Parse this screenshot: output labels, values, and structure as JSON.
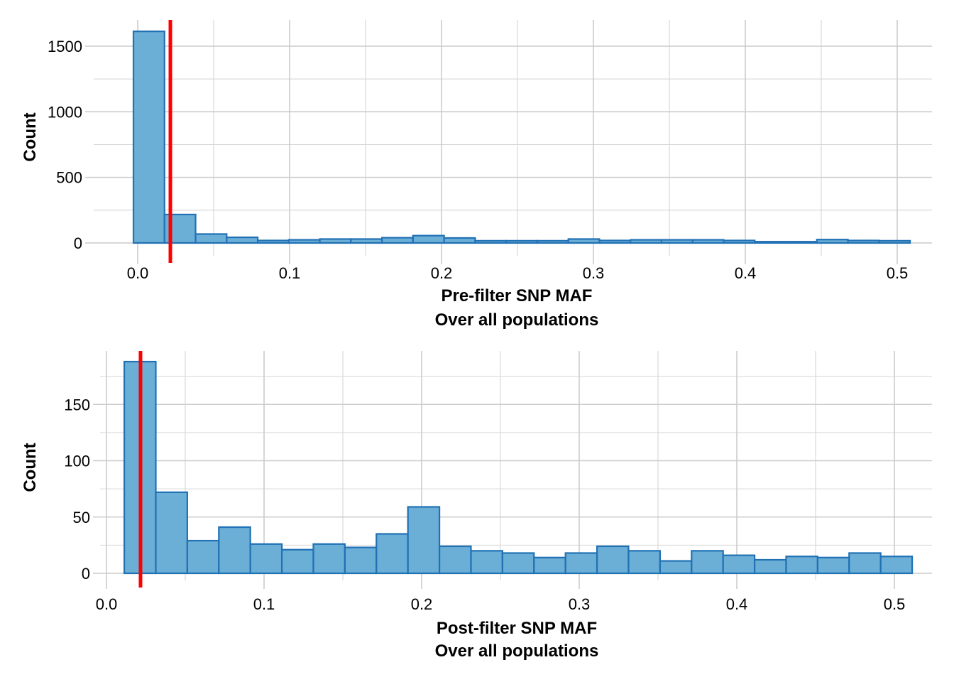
{
  "chart_data": [
    {
      "type": "bar",
      "subtype": "histogram",
      "title": "",
      "xlabel": "Pre-filter SNP MAF\nOver all populations",
      "xlabel_lines": [
        "Pre-filter SNP MAF",
        "Over all populations"
      ],
      "ylabel": "Count",
      "xlim": [
        -0.03,
        0.525
      ],
      "ylim": [
        -70,
        1700
      ],
      "x_ticks": [
        0.0,
        0.1,
        0.2,
        0.3,
        0.4,
        0.5
      ],
      "x_tick_labels": [
        "0.0",
        "0.1",
        "0.2",
        "0.3",
        "0.4",
        "0.5"
      ],
      "y_ticks": [
        0,
        500,
        1000,
        1500
      ],
      "y_tick_labels": [
        "0",
        "500",
        "1000",
        "1500"
      ],
      "grid": true,
      "bin_start": -0.0028,
      "bin_width": 0.02045,
      "values": [
        1613,
        217,
        68,
        43,
        19,
        24,
        30,
        30,
        40,
        56,
        38,
        17,
        17,
        17,
        30,
        19,
        24,
        24,
        24,
        19,
        10,
        10,
        26,
        19,
        17
      ],
      "threshold_line": {
        "x": 0.0215,
        "color": "#ff0000"
      },
      "bar_fill": "#6baed6",
      "bar_edge": "#2171b5"
    },
    {
      "type": "bar",
      "subtype": "histogram",
      "title": "",
      "xlabel": "Post-filter SNP MAF\nOver all populations",
      "xlabel_lines": [
        "Post-filter SNP MAF",
        "Over all populations"
      ],
      "ylabel": "Count",
      "xlim": [
        -0.004,
        0.525
      ],
      "ylim": [
        -8,
        197
      ],
      "x_ticks": [
        0.0,
        0.1,
        0.2,
        0.3,
        0.4,
        0.5
      ],
      "x_tick_labels": [
        "0.0",
        "0.1",
        "0.2",
        "0.3",
        "0.4",
        "0.5"
      ],
      "y_ticks": [
        0,
        50,
        100,
        150
      ],
      "y_tick_labels": [
        "0",
        "50",
        "100",
        "150"
      ],
      "grid": true,
      "bin_start": 0.0113,
      "bin_width": 0.02,
      "values": [
        188,
        72,
        29,
        41,
        26,
        21,
        26,
        23,
        35,
        59,
        24,
        20,
        18,
        14,
        18,
        24,
        20,
        11,
        20,
        16,
        12,
        15,
        14,
        18,
        15
      ],
      "threshold_line": {
        "x": 0.0216,
        "color": "#ff0000"
      },
      "bar_fill": "#6baed6",
      "bar_edge": "#2171b5"
    }
  ]
}
